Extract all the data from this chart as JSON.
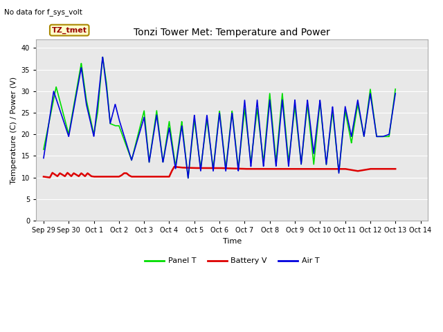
{
  "title": "Tonzi Tower Met: Temperature and Power",
  "top_left_text": "No data for f_sys_volt",
  "ylabel": "Temperature (C) / Power (V)",
  "xlabel": "Time",
  "ylim": [
    0,
    42
  ],
  "yticks": [
    0,
    5,
    10,
    15,
    20,
    25,
    30,
    35,
    40
  ],
  "bg_color": "#e8e8e8",
  "fig_color": "#ffffff",
  "annotation_box": "TZ_tmet",
  "annotation_box_fc": "#ffffcc",
  "annotation_box_ec": "#aa8800",
  "annotation_text_color": "#990000",
  "x_tick_labels": [
    "Sep 29",
    "Sep 30",
    "Oct 1",
    "Oct 2",
    "Oct 3",
    "Oct 4",
    "Oct 5",
    "Oct 6",
    "Oct 7",
    "Oct 8",
    "Oct 9",
    "Oct 10",
    "Oct 11",
    "Oct 12",
    "Oct 13",
    "Oct 14"
  ],
  "panel_T_color": "#00dd00",
  "battery_V_color": "#dd0000",
  "air_T_color": "#0000dd",
  "panel_T_lw": 1.2,
  "battery_V_lw": 1.8,
  "air_T_lw": 1.2,
  "legend_fontsize": 8,
  "tick_fontsize": 7,
  "ylabel_fontsize": 8,
  "xlabel_fontsize": 8,
  "title_fontsize": 10
}
